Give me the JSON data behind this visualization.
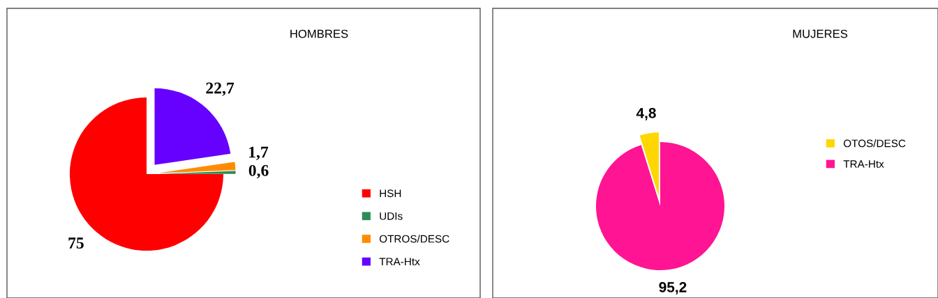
{
  "chart_data": [
    {
      "type": "pie",
      "title": "HOMBRES",
      "categories": [
        "HSH",
        "UDIs",
        "OTROS/DESC",
        "TRA-Htx"
      ],
      "values": [
        75,
        0.6,
        1.7,
        22.7
      ],
      "colors": [
        "#ff0000",
        "#2e8b57",
        "#ff8c00",
        "#6600ff"
      ],
      "value_labels": [
        "75",
        "0,6",
        "1,7",
        "22,7"
      ],
      "legend": "right"
    },
    {
      "type": "pie",
      "title": "MUJERES",
      "categories": [
        "OTOS/DESC",
        "TRA-Htx"
      ],
      "values": [
        4.8,
        95.2
      ],
      "colors": [
        "#ffd700",
        "#ff1493"
      ],
      "value_labels": [
        "4,8",
        "95,2"
      ],
      "legend": "right"
    }
  ]
}
